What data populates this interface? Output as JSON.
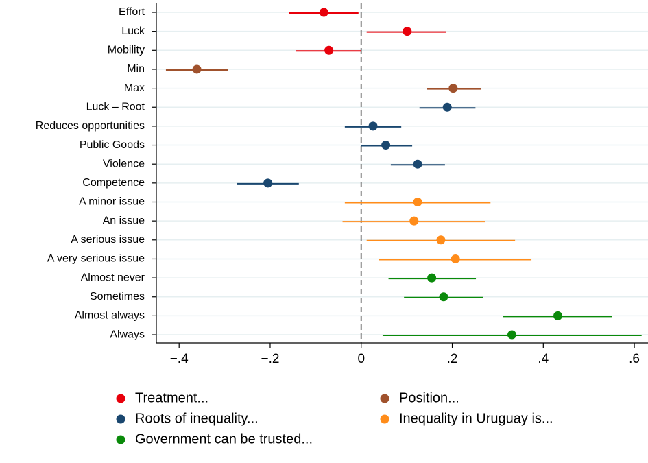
{
  "chart_data": {
    "type": "coefplot",
    "xlim": [
      -0.45,
      0.63
    ],
    "xticks": [
      {
        "value": -0.4,
        "label": "−.4"
      },
      {
        "value": -0.2,
        "label": "−.2"
      },
      0,
      {
        "value": 0.2,
        "label": ".2"
      },
      {
        "value": 0.4,
        "label": ".4"
      },
      {
        "value": 0.6,
        "label": ".6"
      }
    ],
    "reference_line": 0,
    "grid": true,
    "series": [
      {
        "name": "Treatment...",
        "color": "#e8000b",
        "categories": [
          "Effort",
          "Luck",
          "Mobility"
        ],
        "values": [
          -0.082,
          0.101,
          -0.071
        ],
        "ci_low": [
          -0.158,
          0.012,
          -0.143
        ],
        "ci_high": [
          -0.006,
          0.186,
          0.0
        ]
      },
      {
        "name": "Position...",
        "color": "#a0522d",
        "categories": [
          "Min",
          "Max"
        ],
        "values": [
          -0.361,
          0.202
        ],
        "ci_low": [
          -0.429,
          0.145
        ],
        "ci_high": [
          -0.293,
          0.263
        ]
      },
      {
        "name": "Roots of inequality...",
        "color": "#1a476f",
        "categories": [
          "Luck – Root",
          "Reduces opportunities",
          "Public Goods",
          "Violence",
          "Competence"
        ],
        "values": [
          0.189,
          0.026,
          0.054,
          0.124,
          -0.205
        ],
        "ci_low": [
          0.128,
          -0.036,
          0.0,
          0.065,
          -0.273
        ],
        "ci_high": [
          0.251,
          0.088,
          0.112,
          0.184,
          -0.137
        ]
      },
      {
        "name": "Inequality in Uruguay is...",
        "color": "#ff8c1a",
        "categories": [
          "A minor issue",
          "An issue",
          "A serious issue",
          "A very serious issue"
        ],
        "values": [
          0.124,
          0.116,
          0.175,
          0.207
        ],
        "ci_low": [
          -0.036,
          -0.041,
          0.012,
          0.039
        ],
        "ci_high": [
          0.284,
          0.273,
          0.338,
          0.374
        ]
      },
      {
        "name": "Government can be trusted...",
        "color": "#0a8a0a",
        "categories": [
          "Almost never",
          "Sometimes",
          "Almost always",
          "Always"
        ],
        "values": [
          0.155,
          0.181,
          0.432,
          0.331
        ],
        "ci_low": [
          0.06,
          0.094,
          0.311,
          0.047
        ],
        "ci_high": [
          0.252,
          0.267,
          0.551,
          0.616
        ]
      }
    ]
  }
}
